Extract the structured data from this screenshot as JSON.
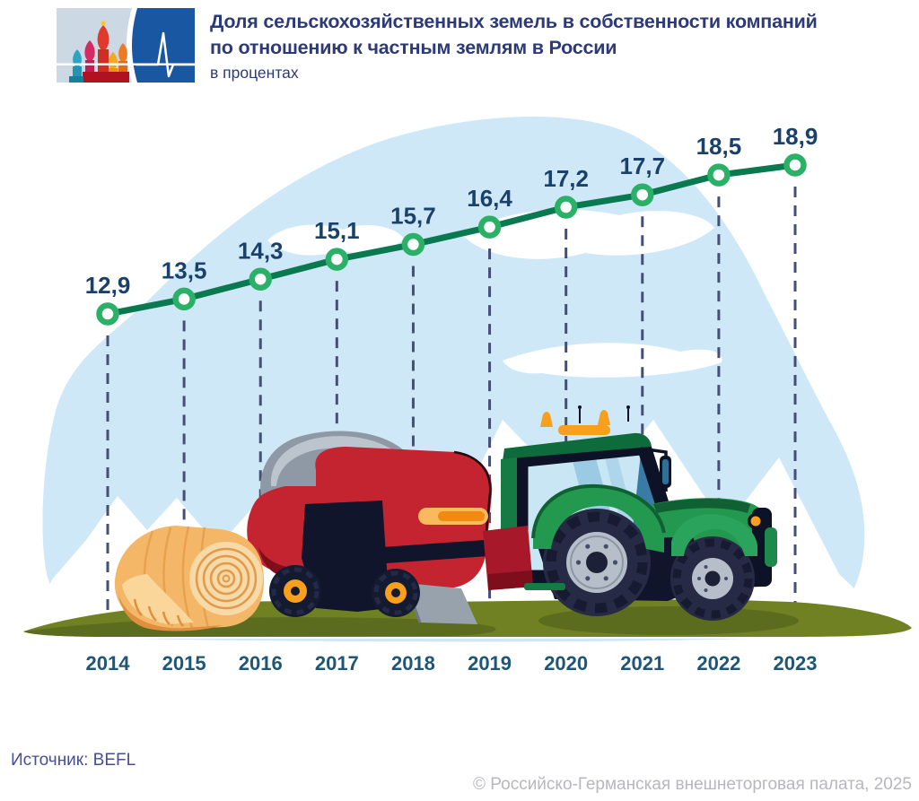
{
  "header": {
    "logo_icons": {
      "left": "st-basils-cathedral-icon",
      "right": "heartbeat-pulse-icon"
    },
    "title_lines": [
      "Доля сельскохозяйственных земель в собственности компаний",
      "по отношению к частным землям в России"
    ],
    "subtitle": "в процентах"
  },
  "chart_data": {
    "type": "line",
    "title": "Доля сельскохозяйственных земель в собственности компаний по отношению к частным землям в России",
    "units": "в процентах",
    "categories": [
      "2014",
      "2015",
      "2016",
      "2017",
      "2018",
      "2019",
      "2020",
      "2021",
      "2022",
      "2023"
    ],
    "values": [
      12.9,
      13.5,
      14.3,
      15.1,
      15.7,
      16.4,
      17.2,
      17.7,
      18.5,
      18.9
    ],
    "value_labels": [
      "12,9",
      "13,5",
      "14,3",
      "15,1",
      "15,7",
      "16,4",
      "17,2",
      "17,7",
      "18,5",
      "18,9"
    ],
    "ylim": [
      12,
      20
    ],
    "grid": false,
    "legend": "none",
    "marker_style": "open-circle",
    "guide_style": "dashed-drop-lines",
    "line_color": "#0a7950",
    "marker_color": "#2bb167",
    "label_color": "#1a416b",
    "category_color": "#1e5678",
    "guide_color": "#454f76"
  },
  "scene": {
    "sky_shape_color": "#cfe8f8",
    "cloud_color": "#ffffff",
    "ground_color": "#6f8122",
    "ground_shadow_color": "#5b6c1e",
    "tractor_color": "#23984f",
    "baler_color": "#c32430",
    "bale_color": "#f4b768",
    "illustration": [
      "tractor",
      "round-baler",
      "hay-bale"
    ]
  },
  "footer": {
    "source": "Источник: BEFL",
    "copyright": "© Российско-Германская внешнеторговая палата, 2025"
  }
}
